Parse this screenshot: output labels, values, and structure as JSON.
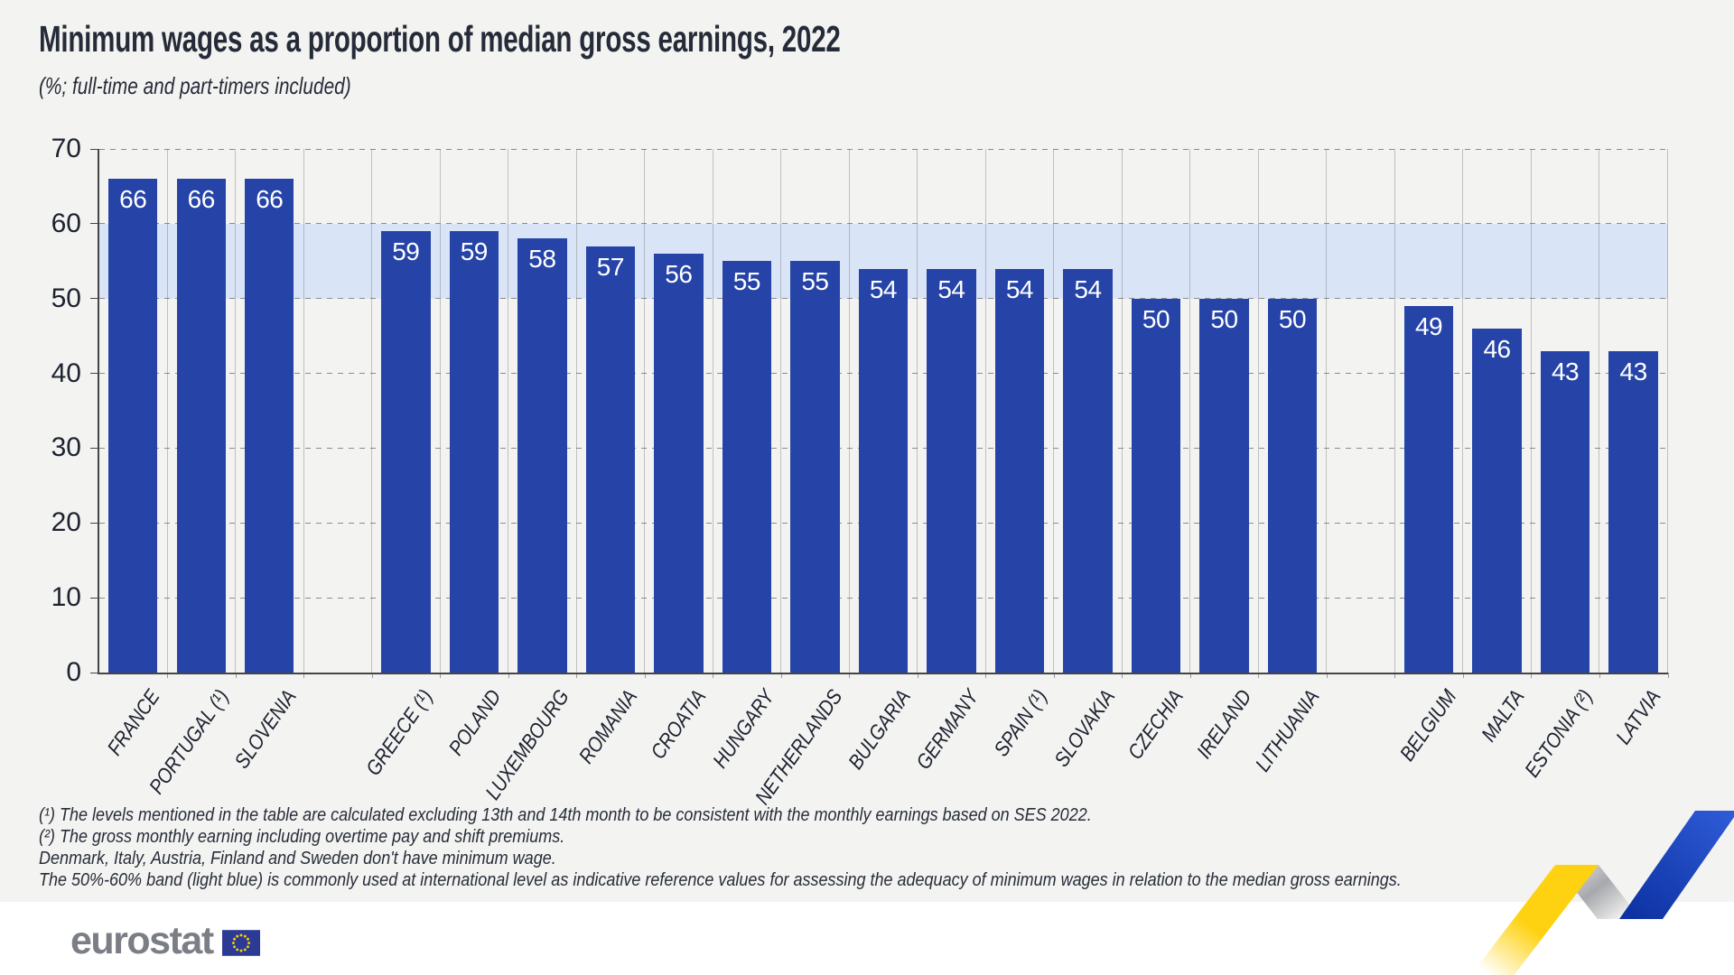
{
  "header": {
    "title": "Minimum wages as a proportion of median gross earnings, 2022",
    "subtitle": "(%; full-time and part-timers included)"
  },
  "chart_data": {
    "type": "bar",
    "title": "Minimum wages as a proportion of median gross earnings, 2022",
    "subtitle": "(%; full-time and part-timers included)",
    "categories": [
      "FRANCE",
      "PORTUGAL (¹)",
      "SLOVENIA",
      "GREECE (¹)",
      "POLAND",
      "LUXEMBOURG",
      "ROMANIA",
      "CROATIA",
      "HUNGARY",
      "NETHERLANDS",
      "BULGARIA",
      "GERMANY",
      "SPAIN (¹)",
      "SLOVAKIA",
      "CZECHIA",
      "IRELAND",
      "LITHUANIA",
      "BELGIUM",
      "MALTA",
      "ESTONIA (²)",
      "LATVIA"
    ],
    "values": [
      66,
      66,
      66,
      59,
      59,
      58,
      57,
      56,
      55,
      55,
      54,
      54,
      54,
      54,
      50,
      50,
      50,
      49,
      46,
      43,
      43
    ],
    "gap_after_indices": [
      2,
      16
    ],
    "ylim": [
      0,
      70
    ],
    "yticks": [
      70,
      60,
      50,
      40,
      30,
      20,
      10,
      0
    ],
    "grid": "horizontal dashed lines every 10, vertical light separators between bars",
    "legend_position": "none",
    "bar_color": "#2644a7",
    "value_label_color": "#ffffff",
    "reference_band": {
      "from": 50,
      "to": 60,
      "color": "#d9e4f6",
      "meaning": "50%-60% indicative reference band (light blue)"
    }
  },
  "footnotes": [
    "(¹) The levels mentioned in the table are calculated excluding 13th and 14th month to be consistent with the monthly earnings based on SES 2022.",
    "(²) The gross monthly earning including overtime pay and shift premiums.",
    "Denmark, Italy, Austria, Finland and Sweden don't have minimum wage.",
    "The 50%-60% band (light blue) is commonly used at international level as indicative reference values for assessing the adequacy of minimum wages in relation to the median gross earnings."
  ],
  "logo": {
    "text": "eurostat"
  },
  "colors": {
    "background": "#f3f3f1",
    "footer_background": "#ffffff",
    "axis": "#454545",
    "dashed_grid": "#8c8c8c",
    "logo_gray": "#7b7f85",
    "flag_blue": "#2b3a94",
    "flag_star_yellow": "#ffcf00",
    "ribbon_yellow": "#ffd211",
    "ribbon_silver": "#a7a8ac",
    "ribbon_blue": "#1d47c4"
  }
}
